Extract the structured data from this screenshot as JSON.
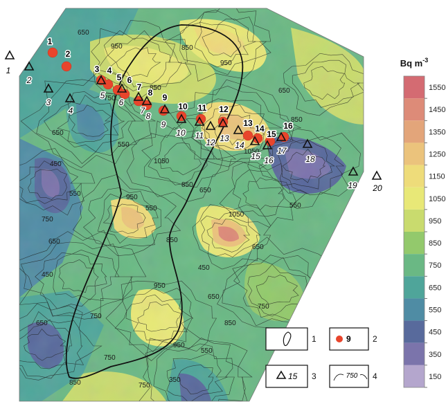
{
  "unit_label": "Bq m",
  "unit_superscript": "-3",
  "scale": {
    "ticks": [
      "1550",
      "1450",
      "1350",
      "1250",
      "1150",
      "1050",
      "950",
      "850",
      "750",
      "650",
      "550",
      "450",
      "350",
      "150"
    ],
    "colors": [
      "#d46b72",
      "#dd8b78",
      "#e3a57a",
      "#ebc37c",
      "#eedc7a",
      "#e8e877",
      "#c9db6e",
      "#93c96c",
      "#6ab884",
      "#4fa59a",
      "#4f8ca4",
      "#586a9c",
      "#7b74ab",
      "#b4a6cd"
    ]
  },
  "contour_labels": [
    "650",
    "950",
    "850",
    "950",
    "750",
    "850",
    "550",
    "650",
    "1050",
    "650",
    "850",
    "450",
    "750",
    "550",
    "1050",
    "950",
    "850",
    "650",
    "1050",
    "750",
    "950",
    "450",
    "850",
    "650",
    "550",
    "750",
    "450",
    "650",
    "850",
    "550",
    "950",
    "750",
    "650",
    "850",
    "350",
    "650",
    "550",
    "750"
  ],
  "red_points": [
    {
      "label": "1"
    },
    {
      "label": "2"
    },
    {
      "label": "3"
    },
    {
      "label": "4"
    },
    {
      "label": "5"
    },
    {
      "label": "6"
    },
    {
      "label": "7"
    },
    {
      "label": "8"
    },
    {
      "label": "9"
    },
    {
      "label": "10"
    },
    {
      "label": "11"
    },
    {
      "label": "12"
    },
    {
      "label": "13"
    },
    {
      "label": "14"
    },
    {
      "label": "15"
    },
    {
      "label": "16"
    }
  ],
  "triangle_points": [
    {
      "label": "1"
    },
    {
      "label": "2"
    },
    {
      "label": "3"
    },
    {
      "label": "4"
    },
    {
      "label": "5"
    },
    {
      "label": "6"
    },
    {
      "label": "7"
    },
    {
      "label": "8"
    },
    {
      "label": "9"
    },
    {
      "label": "10"
    },
    {
      "label": "11"
    },
    {
      "label": "12"
    },
    {
      "label": "13"
    },
    {
      "label": "14"
    },
    {
      "label": "15"
    },
    {
      "label": "16"
    },
    {
      "label": "17"
    },
    {
      "label": "18"
    },
    {
      "label": "19"
    },
    {
      "label": "20"
    }
  ],
  "legend": {
    "item1_num": "1",
    "item2_num": "2",
    "item2_sample": "9",
    "item3_num": "3",
    "item3_sample": "15",
    "item4_num": "4",
    "item4_sample": "750"
  }
}
